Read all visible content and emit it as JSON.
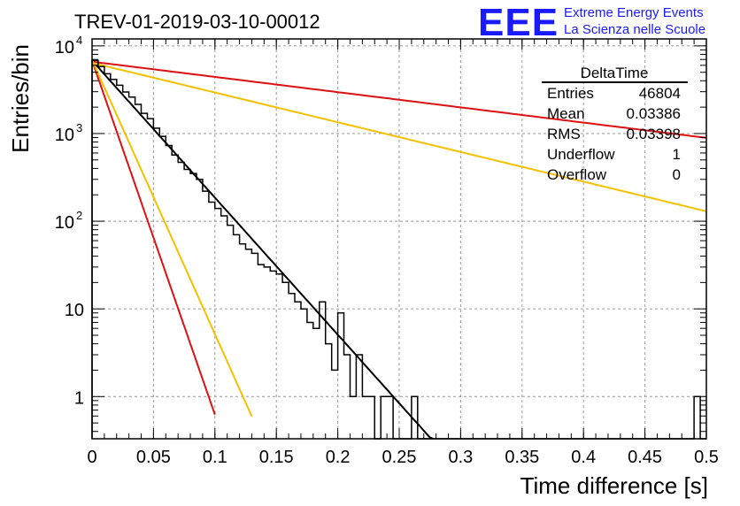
{
  "header": {
    "title": "TREV-01-2019-03-10-00012",
    "logo_letters": "EEE",
    "logo_line1": "Extreme Energy Events",
    "logo_line2": "La Scienza nelle Scuole"
  },
  "stats_box": {
    "name": "DeltaTime",
    "rows": [
      {
        "label": "Entries",
        "value": "46804"
      },
      {
        "label": "Mean",
        "value": "0.03386"
      },
      {
        "label": "RMS",
        "value": "0.03398"
      },
      {
        "label": "Underflow",
        "value": "1"
      },
      {
        "label": "Overflow",
        "value": "0"
      }
    ]
  },
  "chart_data": {
    "type": "line",
    "xlabel": "Time difference [s]",
    "ylabel": "Entries/bin",
    "xlim": [
      0,
      0.5
    ],
    "ylim": [
      0.33,
      12000
    ],
    "yscale": "log",
    "grid": true,
    "x_ticks": [
      "0",
      "0.05",
      "0.1",
      "0.15",
      "0.2",
      "0.25",
      "0.3",
      "0.35",
      "0.4",
      "0.45",
      "0.5"
    ],
    "y_ticks": [
      {
        "base": "10",
        "exp": "4",
        "value": 10000
      },
      {
        "base": "10",
        "exp": "3",
        "value": 1000
      },
      {
        "base": "10",
        "exp": "2",
        "value": 100
      },
      {
        "base": "10",
        "exp": "",
        "value": 10
      },
      {
        "base": "1",
        "exp": "",
        "value": 1
      }
    ],
    "histogram": {
      "bin_width": 0.005,
      "counts": [
        6800,
        5800,
        4800,
        4150,
        3550,
        2980,
        2600,
        2150,
        1700,
        1480,
        1150,
        930,
        730,
        570,
        470,
        390,
        350,
        300,
        220,
        165,
        140,
        115,
        90,
        70,
        55,
        48,
        43,
        32,
        30,
        27,
        25,
        20,
        15,
        12,
        10,
        7,
        6,
        12,
        4,
        2,
        9,
        3,
        1,
        3,
        1,
        1,
        0,
        1,
        1,
        0,
        0,
        0,
        1,
        0,
        0,
        0,
        0,
        0,
        0,
        0,
        0,
        0,
        0,
        0,
        0,
        0,
        0,
        0,
        0,
        0,
        0,
        0,
        0,
        0,
        0,
        0,
        0,
        0,
        0,
        0,
        0,
        0,
        0,
        0,
        0,
        0,
        0,
        0,
        0,
        0,
        0,
        0,
        0,
        0,
        0,
        0,
        0,
        0,
        1,
        0
      ]
    },
    "series": [
      {
        "name": "",
        "color": "#000000",
        "y0": 6800,
        "decay_per_s": 36,
        "x_start": 0,
        "x_end": 0.34
      },
      {
        "name": "",
        "color": "#dd1111",
        "y0": 6600,
        "decay_per_s": 4.0,
        "x_start": 0,
        "x_end": 0.5
      },
      {
        "name": "",
        "color": "#f5c000",
        "y0": 6400,
        "decay_per_s": 7.8,
        "x_start": 0,
        "x_end": 0.5
      },
      {
        "name": "",
        "color": "#dd1111",
        "y0": 6800,
        "decay_per_s": 93,
        "x_start": 0,
        "x_end": 0.1
      },
      {
        "name": "",
        "color": "#f5c000",
        "y0": 6900,
        "decay_per_s": 72,
        "x_start": 0,
        "x_end": 0.13
      }
    ]
  }
}
